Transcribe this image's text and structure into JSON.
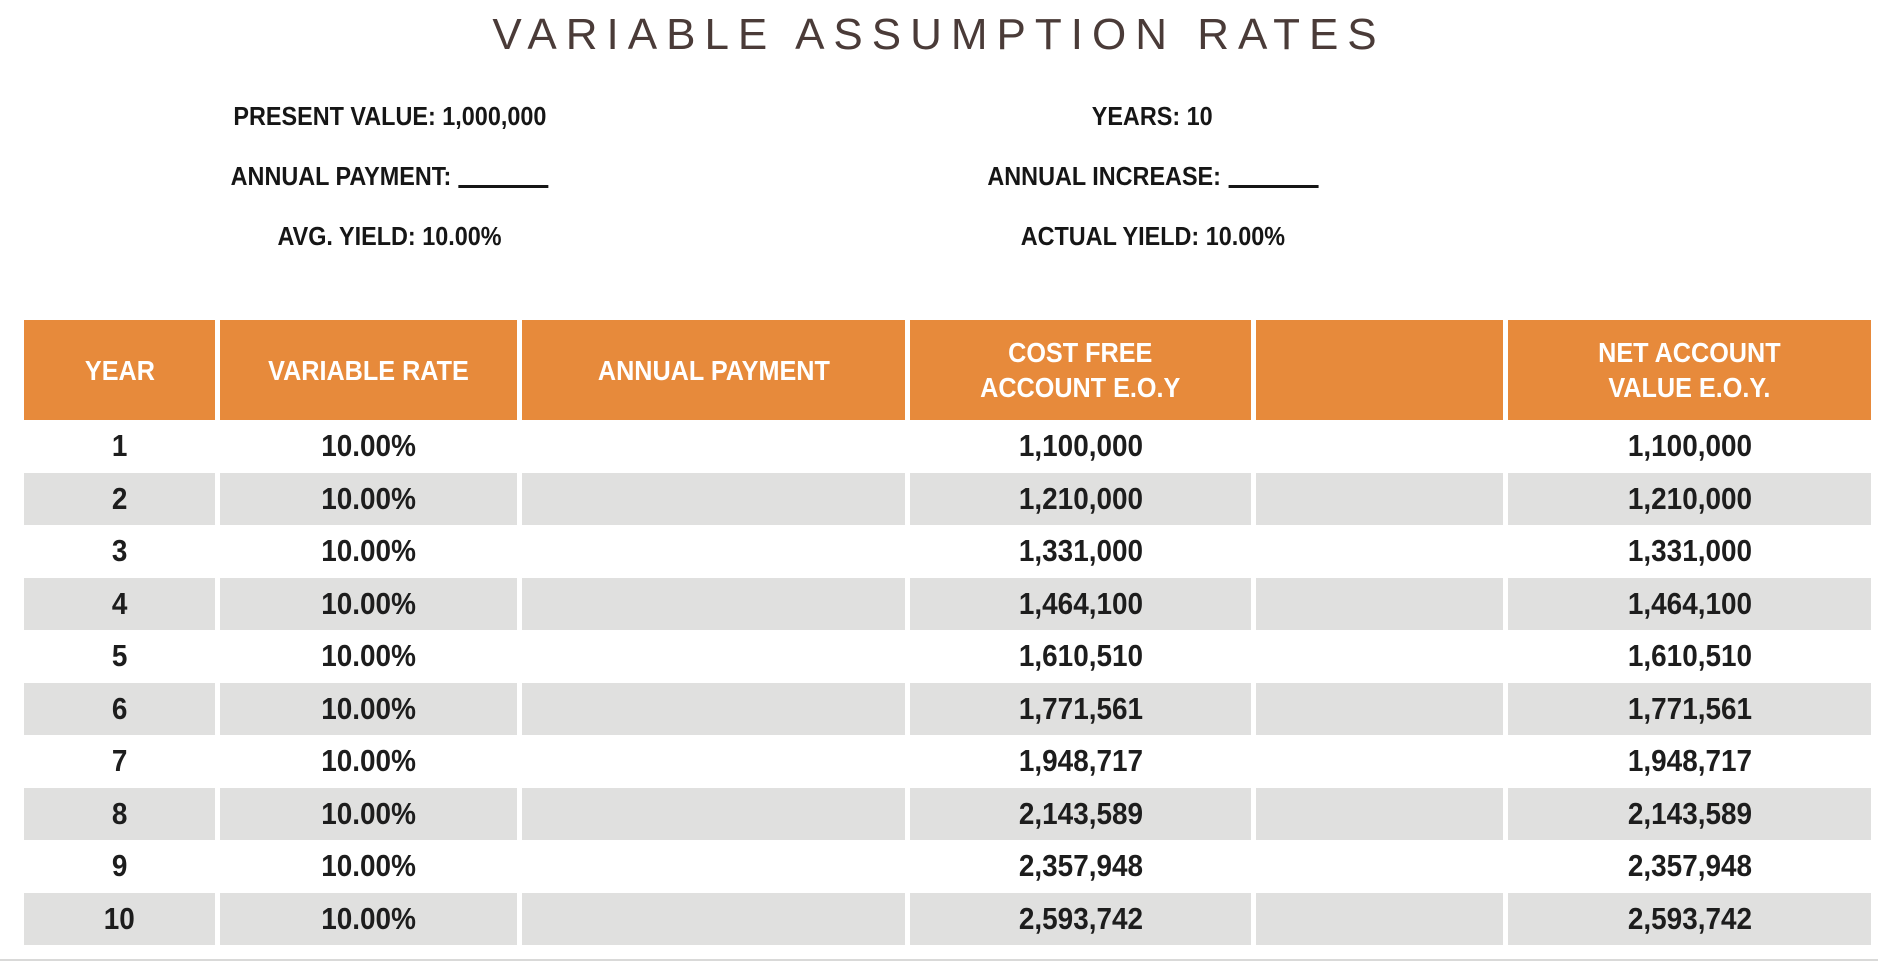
{
  "title": "VARIABLE ASSUMPTION RATES",
  "parameters": {
    "left": [
      {
        "text": "PRESENT VALUE: 1,000,000",
        "blank": false
      },
      {
        "text": "ANNUAL PAYMENT:",
        "blank": true
      },
      {
        "text": "AVG. YIELD: 10.00%",
        "blank": false
      }
    ],
    "right": [
      {
        "text": "YEARS: 10",
        "blank": false
      },
      {
        "text": "ANNUAL INCREASE:",
        "blank": true
      },
      {
        "text": "ACTUAL YIELD: 10.00%",
        "blank": false
      }
    ]
  },
  "table": {
    "columns": [
      "YEAR",
      "VARIABLE RATE",
      "ANNUAL PAYMENT",
      "COST FREE\nACCOUNT E.O.Y",
      "",
      "NET ACCOUNT\nVALUE E.O.Y."
    ],
    "rows": [
      [
        "1",
        "10.00%",
        "",
        "1,100,000",
        "",
        "1,100,000"
      ],
      [
        "2",
        "10.00%",
        "",
        "1,210,000",
        "",
        "1,210,000"
      ],
      [
        "3",
        "10.00%",
        "",
        "1,331,000",
        "",
        "1,331,000"
      ],
      [
        "4",
        "10.00%",
        "",
        "1,464,100",
        "",
        "1,464,100"
      ],
      [
        "5",
        "10.00%",
        "",
        "1,610,510",
        "",
        "1,610,510"
      ],
      [
        "6",
        "10.00%",
        "",
        "1,771,561",
        "",
        "1,771,561"
      ],
      [
        "7",
        "10.00%",
        "",
        "1,948,717",
        "",
        "1,948,717"
      ],
      [
        "8",
        "10.00%",
        "",
        "2,143,589",
        "",
        "2,143,589"
      ],
      [
        "9",
        "10.00%",
        "",
        "2,357,948",
        "",
        "2,357,948"
      ],
      [
        "10",
        "10.00%",
        "",
        "2,593,742",
        "",
        "2,593,742"
      ]
    ]
  },
  "colors": {
    "header_orange": "#E78A3B",
    "row_gray": "#E0E0DF",
    "title_color": "#4A3B38",
    "text_color": "#1D1D1D"
  }
}
